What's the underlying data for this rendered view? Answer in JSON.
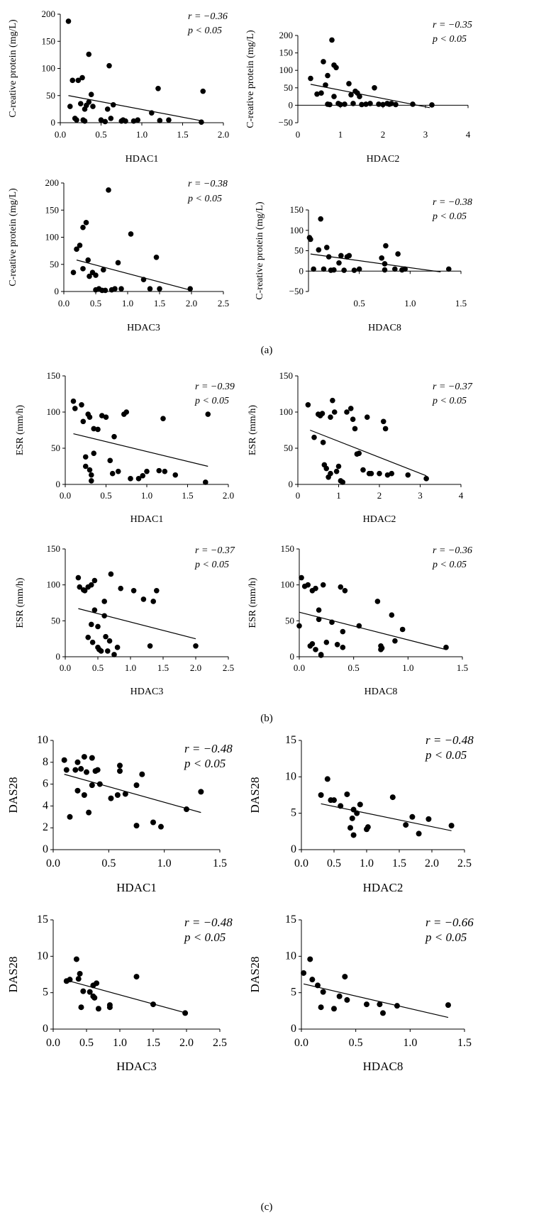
{
  "panel_labels": [
    "(a)",
    "(b)",
    "(c)"
  ],
  "chart_data": [
    {
      "id": "a1",
      "type": "scatter",
      "panel": "(a)",
      "xlabel": "HDAC1",
      "ylabel": "C-reative protein (mg/L)",
      "xlim": [
        0,
        2
      ],
      "xticks": [
        0,
        0.5,
        1,
        1.5,
        2
      ],
      "xtick_labels": [
        "0.0",
        "0.5",
        "1.0",
        "1.5",
        "2.0"
      ],
      "ylim": [
        0,
        200
      ],
      "yticks": [
        0,
        50,
        100,
        150,
        200
      ],
      "ytick_labels": [
        "0",
        "50",
        "100",
        "150",
        "200"
      ],
      "r_text": "r = −0.36",
      "p_text": "p < 0.05",
      "trend": [
        [
          0.1,
          50
        ],
        [
          1.75,
          3
        ]
      ],
      "x": [
        0.1,
        0.12,
        0.15,
        0.18,
        0.2,
        0.22,
        0.25,
        0.27,
        0.28,
        0.3,
        0.3,
        0.32,
        0.35,
        0.35,
        0.38,
        0.4,
        0.5,
        0.55,
        0.58,
        0.6,
        0.62,
        0.65,
        0.75,
        0.77,
        0.8,
        0.9,
        0.95,
        1.12,
        1.2,
        1.22,
        1.33,
        1.75,
        1.73
      ],
      "y": [
        187,
        30,
        78,
        8,
        5,
        78,
        35,
        83,
        5,
        25,
        3,
        32,
        126,
        38,
        52,
        30,
        5,
        2,
        25,
        105,
        8,
        33,
        3,
        5,
        3,
        3,
        5,
        18,
        63,
        4,
        5,
        58,
        1
      ]
    },
    {
      "id": "a2",
      "type": "scatter",
      "panel": "(a)",
      "xlabel": "HDAC2",
      "ylabel": "C-reative protein (mg/L)",
      "xlim": [
        0,
        4
      ],
      "xticks": [
        0,
        1,
        2,
        3,
        4
      ],
      "xtick_labels": [
        "0",
        "1",
        "2",
        "3",
        "4"
      ],
      "ylim": [
        -50,
        200
      ],
      "yticks": [
        -50,
        0,
        50,
        100,
        150,
        200
      ],
      "ytick_labels": [
        "−50",
        "0",
        "50",
        "100",
        "150",
        "200"
      ],
      "r_text": "r = −0.35",
      "p_text": "p < 0.05",
      "trend": [
        [
          0.3,
          60
        ],
        [
          3.1,
          -7
        ]
      ],
      "x": [
        0.3,
        0.45,
        0.55,
        0.6,
        0.65,
        0.7,
        0.7,
        0.75,
        0.8,
        0.85,
        0.85,
        0.9,
        0.95,
        1.0,
        1.1,
        1.2,
        1.25,
        1.3,
        1.35,
        1.4,
        1.45,
        1.5,
        1.6,
        1.7,
        1.8,
        1.9,
        2.0,
        2.1,
        2.15,
        2.2,
        2.3,
        2.7,
        3.15
      ],
      "y": [
        77,
        32,
        35,
        125,
        58,
        85,
        3,
        2,
        187,
        115,
        25,
        108,
        5,
        2,
        3,
        62,
        30,
        5,
        40,
        35,
        25,
        2,
        3,
        5,
        50,
        3,
        2,
        5,
        3,
        5,
        2,
        3,
        1
      ]
    },
    {
      "id": "a3",
      "type": "scatter",
      "panel": "(a)",
      "xlabel": "HDAC3",
      "ylabel": "C-reative protein (mg/L)",
      "xlim": [
        0,
        2.5
      ],
      "xticks": [
        0,
        0.5,
        1,
        1.5,
        2,
        2.5
      ],
      "xtick_labels": [
        "0.0",
        "0.5",
        "1.0",
        "1.5",
        "2.0",
        "2.5"
      ],
      "ylim": [
        0,
        200
      ],
      "yticks": [
        0,
        50,
        100,
        150,
        200
      ],
      "ytick_labels": [
        "0",
        "50",
        "100",
        "150",
        "200"
      ],
      "r_text": "r = −0.38",
      "p_text": "p < 0.05",
      "trend": [
        [
          0.2,
          58
        ],
        [
          2.0,
          2
        ]
      ],
      "x": [
        0.15,
        0.2,
        0.25,
        0.3,
        0.3,
        0.35,
        0.38,
        0.4,
        0.45,
        0.5,
        0.5,
        0.55,
        0.6,
        0.62,
        0.65,
        0.7,
        0.75,
        0.8,
        0.85,
        0.9,
        1.05,
        1.25,
        1.35,
        1.45,
        1.5,
        1.98
      ],
      "y": [
        35,
        78,
        85,
        118,
        42,
        127,
        58,
        28,
        35,
        30,
        3,
        5,
        2,
        40,
        2,
        187,
        3,
        5,
        53,
        5,
        106,
        22,
        5,
        63,
        5,
        5
      ]
    },
    {
      "id": "a4",
      "type": "scatter",
      "panel": "(a)",
      "xlabel": "HDAC8",
      "ylabel": "C-reative protein (mg/L)",
      "xlim": [
        0,
        1.5
      ],
      "xticks": [
        0.5,
        1,
        1.5
      ],
      "xtick_labels": [
        "0.5",
        "1.0",
        "1.5"
      ],
      "ylim": [
        -50,
        150
      ],
      "yticks": [
        -50,
        0,
        50,
        100,
        150
      ],
      "ytick_labels": [
        "−50",
        "0",
        "50",
        "100",
        "150"
      ],
      "r_text": "r = −0.38",
      "p_text": "p < 0.05",
      "trend": [
        [
          0.02,
          42
        ],
        [
          1.3,
          -2
        ]
      ],
      "x": [
        0.01,
        0.02,
        0.05,
        0.1,
        0.12,
        0.15,
        0.18,
        0.2,
        0.22,
        0.25,
        0.3,
        0.32,
        0.35,
        0.38,
        0.4,
        0.45,
        0.5,
        0.72,
        0.75,
        0.75,
        0.76,
        0.85,
        0.88,
        0.92,
        0.95,
        1.38
      ],
      "y": [
        82,
        78,
        5,
        52,
        128,
        5,
        58,
        35,
        2,
        3,
        20,
        38,
        2,
        35,
        38,
        2,
        5,
        32,
        18,
        3,
        62,
        5,
        42,
        3,
        5,
        5
      ]
    },
    {
      "id": "b1",
      "type": "scatter",
      "panel": "(b)",
      "xlabel": "HDAC1",
      "ylabel": "ESR (mm/h)",
      "xlim": [
        0,
        2
      ],
      "xticks": [
        0,
        0.5,
        1,
        1.5,
        2
      ],
      "xtick_labels": [
        "0.0",
        "0.5",
        "1.0",
        "1.5",
        "2.0"
      ],
      "ylim": [
        0,
        150
      ],
      "yticks": [
        0,
        50,
        100,
        150
      ],
      "ytick_labels": [
        "0",
        "50",
        "100",
        "150"
      ],
      "r_text": "r = −0.39",
      "p_text": "p < 0.05",
      "trend": [
        [
          0.1,
          70
        ],
        [
          1.75,
          25
        ]
      ],
      "x": [
        0.1,
        0.12,
        0.2,
        0.22,
        0.25,
        0.25,
        0.28,
        0.3,
        0.3,
        0.32,
        0.32,
        0.35,
        0.35,
        0.4,
        0.45,
        0.5,
        0.55,
        0.58,
        0.6,
        0.65,
        0.72,
        0.75,
        0.8,
        0.9,
        0.95,
        1.0,
        1.15,
        1.2,
        1.22,
        1.35,
        1.72,
        1.75
      ],
      "y": [
        115,
        105,
        110,
        87,
        38,
        25,
        97,
        93,
        20,
        13,
        5,
        77,
        43,
        76,
        95,
        93,
        33,
        15,
        66,
        18,
        97,
        100,
        8,
        8,
        12,
        18,
        19,
        91,
        18,
        13,
        3,
        97
      ]
    },
    {
      "id": "b2",
      "type": "scatter",
      "panel": "(b)",
      "xlabel": "HDAC2",
      "ylabel": "ESR (mm/h)",
      "xlim": [
        0,
        4
      ],
      "xticks": [
        0,
        1,
        2,
        3,
        4
      ],
      "xtick_labels": [
        "0",
        "1",
        "2",
        "3",
        "4"
      ],
      "ylim": [
        0,
        150
      ],
      "yticks": [
        0,
        50,
        100,
        150
      ],
      "ytick_labels": [
        "0",
        "50",
        "100",
        "150"
      ],
      "r_text": "r = −0.37",
      "p_text": "p < 0.05",
      "trend": [
        [
          0.3,
          75
        ],
        [
          3.15,
          12
        ]
      ],
      "x": [
        0.25,
        0.4,
        0.5,
        0.55,
        0.6,
        0.62,
        0.65,
        0.7,
        0.75,
        0.8,
        0.8,
        0.85,
        0.9,
        0.95,
        1.0,
        1.05,
        1.1,
        1.2,
        1.3,
        1.35,
        1.4,
        1.45,
        1.5,
        1.6,
        1.7,
        1.75,
        1.8,
        2.0,
        2.1,
        2.15,
        2.2,
        2.3,
        2.7,
        3.15
      ],
      "y": [
        110,
        65,
        97,
        95,
        98,
        58,
        27,
        22,
        10,
        15,
        93,
        116,
        100,
        18,
        25,
        5,
        3,
        100,
        105,
        90,
        77,
        42,
        43,
        20,
        93,
        15,
        15,
        15,
        87,
        77,
        13,
        15,
        13,
        8
      ]
    },
    {
      "id": "b3",
      "type": "scatter",
      "panel": "(b)",
      "xlabel": "HDAC3",
      "ylabel": "ESR (mm/h)",
      "xlim": [
        0,
        2.5
      ],
      "xticks": [
        0,
        0.5,
        1,
        1.5,
        2,
        2.5
      ],
      "xtick_labels": [
        "0.0",
        "0.5",
        "1.0",
        "1.5",
        "2.0",
        "2.5"
      ],
      "ylim": [
        0,
        150
      ],
      "yticks": [
        0,
        50,
        100,
        150
      ],
      "ytick_labels": [
        "0",
        "50",
        "100",
        "150"
      ],
      "r_text": "r = −0.37",
      "p_text": "p < 0.05",
      "trend": [
        [
          0.2,
          67
        ],
        [
          2.0,
          25
        ]
      ],
      "x": [
        0.2,
        0.22,
        0.28,
        0.3,
        0.35,
        0.35,
        0.4,
        0.4,
        0.42,
        0.45,
        0.45,
        0.5,
        0.5,
        0.52,
        0.55,
        0.6,
        0.6,
        0.62,
        0.65,
        0.68,
        0.7,
        0.75,
        0.8,
        0.85,
        1.05,
        1.2,
        1.3,
        1.35,
        1.4,
        2.0
      ],
      "y": [
        110,
        97,
        93,
        92,
        97,
        27,
        100,
        45,
        20,
        106,
        65,
        42,
        13,
        10,
        8,
        77,
        57,
        28,
        8,
        22,
        115,
        3,
        13,
        95,
        92,
        80,
        15,
        77,
        92,
        15
      ]
    },
    {
      "id": "b4",
      "type": "scatter",
      "panel": "(b)",
      "xlabel": "HDAC8",
      "ylabel": "ESR (mm/h)",
      "xlim": [
        0,
        1.5
      ],
      "xticks": [
        0,
        0.5,
        1,
        1.5
      ],
      "xtick_labels": [
        "0.0",
        "0.5",
        "1.0",
        "1.5"
      ],
      "ylim": [
        0,
        150
      ],
      "yticks": [
        0,
        50,
        100,
        150
      ],
      "ytick_labels": [
        "0",
        "50",
        "100",
        "150"
      ],
      "r_text": "r = −0.36",
      "p_text": "p < 0.05",
      "trend": [
        [
          0.0,
          62
        ],
        [
          1.35,
          10
        ]
      ],
      "x": [
        0.0,
        0.02,
        0.05,
        0.08,
        0.1,
        0.12,
        0.12,
        0.15,
        0.15,
        0.18,
        0.18,
        0.2,
        0.2,
        0.22,
        0.25,
        0.3,
        0.35,
        0.38,
        0.4,
        0.4,
        0.42,
        0.55,
        0.72,
        0.75,
        0.75,
        0.76,
        0.85,
        0.88,
        0.95,
        1.35
      ],
      "y": [
        43,
        110,
        98,
        100,
        15,
        92,
        18,
        95,
        10,
        65,
        52,
        3,
        2,
        100,
        20,
        48,
        17,
        97,
        35,
        13,
        92,
        43,
        77,
        15,
        10,
        12,
        58,
        22,
        38,
        13
      ]
    },
    {
      "id": "c1",
      "type": "scatter",
      "panel": "(c)",
      "xlabel": "HDAC1",
      "ylabel": "DAS28",
      "xlim": [
        0,
        1.5
      ],
      "xticks": [
        0,
        0.5,
        1,
        1.5
      ],
      "xtick_labels": [
        "0.0",
        "0.5",
        "1.0",
        "1.5"
      ],
      "ylim": [
        0,
        10
      ],
      "yticks": [
        0,
        2,
        4,
        6,
        8,
        10
      ],
      "ytick_labels": [
        "0",
        "2",
        "4",
        "6",
        "8",
        "10"
      ],
      "r_text": "r = −0.48",
      "p_text": "p < 0.05",
      "trend": [
        [
          0.1,
          6.9
        ],
        [
          1.33,
          3.4
        ]
      ],
      "x": [
        0.1,
        0.12,
        0.15,
        0.2,
        0.22,
        0.22,
        0.25,
        0.28,
        0.28,
        0.3,
        0.32,
        0.35,
        0.35,
        0.38,
        0.4,
        0.42,
        0.52,
        0.58,
        0.6,
        0.6,
        0.65,
        0.75,
        0.75,
        0.8,
        0.9,
        0.97,
        1.2,
        1.33
      ],
      "y": [
        8.2,
        7.3,
        3.0,
        7.3,
        8.0,
        5.4,
        7.4,
        8.5,
        5.0,
        7.1,
        3.4,
        8.4,
        5.9,
        7.2,
        7.3,
        6.0,
        4.7,
        5.0,
        7.7,
        7.2,
        5.1,
        5.9,
        2.2,
        6.9,
        2.5,
        2.1,
        3.7,
        5.3
      ]
    },
    {
      "id": "c2",
      "type": "scatter",
      "panel": "(c)",
      "xlabel": "HDAC2",
      "ylabel": "DAS28",
      "xlim": [
        0,
        2.5
      ],
      "xticks": [
        0,
        0.5,
        1,
        1.5,
        2,
        2.5
      ],
      "xtick_labels": [
        "0.0",
        "0.5",
        "1.0",
        "1.5",
        "2.0",
        "2.5"
      ],
      "ylim": [
        0,
        15
      ],
      "yticks": [
        0,
        5,
        10,
        15
      ],
      "ytick_labels": [
        "0",
        "5",
        "10",
        "15"
      ],
      "r_text": "r = −0.48",
      "p_text": "p < 0.05",
      "trend": [
        [
          0.3,
          6.3
        ],
        [
          2.3,
          2.6
        ]
      ],
      "x": [
        0.3,
        0.4,
        0.45,
        0.5,
        0.6,
        0.7,
        0.75,
        0.78,
        0.8,
        0.8,
        0.85,
        0.9,
        1.0,
        1.02,
        1.4,
        1.6,
        1.7,
        1.8,
        1.95,
        2.3
      ],
      "y": [
        7.5,
        9.7,
        6.8,
        6.8,
        6.0,
        7.6,
        3.0,
        4.3,
        2.0,
        5.5,
        5.0,
        6.2,
        2.8,
        3.1,
        7.2,
        3.4,
        4.5,
        2.2,
        4.2,
        3.3
      ]
    },
    {
      "id": "c3",
      "type": "scatter",
      "panel": "(c)",
      "xlabel": "HDAC3",
      "ylabel": "DAS28",
      "xlim": [
        0,
        2.5
      ],
      "xticks": [
        0,
        0.5,
        1,
        1.5,
        2,
        2.5
      ],
      "xtick_labels": [
        "0.0",
        "0.5",
        "1.0",
        "1.5",
        "2.0",
        "2.5"
      ],
      "ylim": [
        0,
        15
      ],
      "yticks": [
        0,
        5,
        10,
        15
      ],
      "ytick_labels": [
        "0",
        "5",
        "10",
        "15"
      ],
      "r_text": "r = −0.48",
      "p_text": "p < 0.05",
      "trend": [
        [
          0.2,
          6.7
        ],
        [
          2.0,
          2.2
        ]
      ],
      "x": [
        0.2,
        0.25,
        0.35,
        0.38,
        0.4,
        0.42,
        0.45,
        0.55,
        0.6,
        0.6,
        0.62,
        0.65,
        0.68,
        0.85,
        0.85,
        1.25,
        1.5,
        1.98
      ],
      "y": [
        6.6,
        6.8,
        9.6,
        6.9,
        7.6,
        3.0,
        5.2,
        5.1,
        4.5,
        6.0,
        4.3,
        6.3,
        2.8,
        3.3,
        3.0,
        7.2,
        3.4,
        2.2
      ]
    },
    {
      "id": "c4",
      "type": "scatter",
      "panel": "(c)",
      "xlabel": "HDAC8",
      "ylabel": "DAS28",
      "xlim": [
        0,
        1.5
      ],
      "xticks": [
        0,
        0.5,
        1,
        1.5
      ],
      "xtick_labels": [
        "0.0",
        "0.5",
        "1.0",
        "1.5"
      ],
      "ylim": [
        0,
        15
      ],
      "yticks": [
        0,
        5,
        10,
        15
      ],
      "ytick_labels": [
        "0",
        "5",
        "10",
        "15"
      ],
      "r_text": "r = −0.66",
      "p_text": "p < 0.05",
      "trend": [
        [
          0.02,
          6.2
        ],
        [
          1.35,
          1.6
        ]
      ],
      "x": [
        0.02,
        0.08,
        0.1,
        0.15,
        0.18,
        0.2,
        0.3,
        0.35,
        0.4,
        0.42,
        0.6,
        0.72,
        0.75,
        0.88,
        1.35
      ],
      "y": [
        7.7,
        9.6,
        6.8,
        6.0,
        3.0,
        5.1,
        2.8,
        4.5,
        7.2,
        4.0,
        3.4,
        3.4,
        2.2,
        3.2,
        3.3
      ]
    }
  ]
}
